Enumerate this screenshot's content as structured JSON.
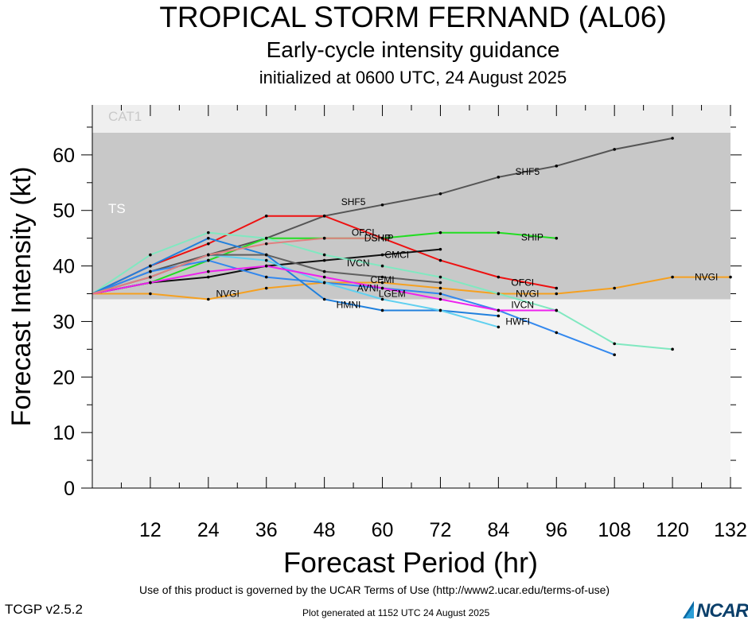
{
  "header": {
    "title": "TROPICAL STORM FERNAND (AL06)",
    "subtitle": "Early-cycle intensity guidance",
    "init": "initialized at 0600 UTC, 24 August 2025"
  },
  "footer": {
    "terms": "Use of this product is governed by the UCAR Terms of Use (http://www2.ucar.edu/terms-of-use)",
    "version": "TCGP v2.5.2",
    "generated": "Plot generated at 1152 UTC   24 August 2025",
    "logo_text": "NCAR"
  },
  "chart_data": {
    "type": "line",
    "xlabel": "Forecast Period (hr)",
    "ylabel": "Forecast Intensity (kt)",
    "xlim": [
      0,
      132
    ],
    "ylim": [
      0,
      69
    ],
    "xticks": [
      12,
      24,
      36,
      48,
      60,
      72,
      84,
      96,
      108,
      120,
      132
    ],
    "yticks": [
      0,
      10,
      20,
      30,
      40,
      50,
      60
    ],
    "bands": [
      {
        "name": "TS",
        "from": 34,
        "to": 64,
        "color": "#c8c8c8"
      },
      {
        "name": "CAT1",
        "from": 64,
        "to": 69,
        "color": "#efefef"
      }
    ],
    "series": [
      {
        "name": "SHF5",
        "color": "#555555",
        "x": [
          0,
          12,
          24,
          36,
          48,
          60,
          72,
          84,
          96,
          108,
          120
        ],
        "y": [
          35,
          39,
          42,
          45,
          49,
          51,
          53,
          56,
          58,
          61,
          63
        ]
      },
      {
        "name": "SHIP",
        "color": "#22dd22",
        "x": [
          0,
          12,
          24,
          36,
          48,
          60,
          72,
          84,
          96
        ],
        "y": [
          35,
          37,
          41,
          45,
          45,
          45,
          46,
          46,
          45
        ]
      },
      {
        "name": "OFCI",
        "color": "#ee1111",
        "x": [
          0,
          12,
          24,
          36,
          48,
          60,
          72,
          84,
          96
        ],
        "y": [
          35,
          40,
          44,
          49,
          49,
          45,
          41,
          38,
          36
        ]
      },
      {
        "name": "CMCI",
        "color": "#111111",
        "x": [
          0,
          12,
          24,
          36,
          48,
          60,
          72
        ],
        "y": [
          35,
          37,
          38,
          40,
          41,
          42,
          43
        ]
      },
      {
        "name": "NVGI",
        "color": "#f5a020",
        "x": [
          0,
          12,
          24,
          36,
          48,
          60,
          72,
          84,
          96,
          108,
          120,
          132
        ],
        "y": [
          35,
          35,
          34,
          36,
          37,
          37,
          36,
          35,
          35,
          36,
          38,
          38
        ]
      },
      {
        "name": "IVCN",
        "color": "#80e8c0",
        "x": [
          0,
          12,
          24,
          36,
          48,
          60,
          72,
          84,
          96,
          108,
          120
        ],
        "y": [
          35,
          42,
          46,
          45,
          42,
          40,
          38,
          35,
          32,
          26,
          25
        ]
      },
      {
        "name": "HWFI",
        "color": "#3388ee",
        "x": [
          0,
          12,
          24,
          36,
          48,
          60,
          72,
          84,
          96,
          108
        ],
        "y": [
          35,
          39,
          41,
          38,
          37,
          36,
          35,
          32,
          28,
          24
        ]
      },
      {
        "name": "HMNI",
        "color": "#2080dd",
        "x": [
          0,
          12,
          24,
          36,
          48,
          60,
          72,
          84
        ],
        "y": [
          35,
          40,
          45,
          42,
          34,
          32,
          32,
          31
        ]
      },
      {
        "name": "AVNI",
        "color": "#60d0f0",
        "x": [
          0,
          12,
          24,
          36,
          48,
          60,
          72,
          84
        ],
        "y": [
          35,
          38,
          42,
          41,
          37,
          34,
          32,
          29
        ]
      },
      {
        "name": "CEMI",
        "color": "#606060",
        "x": [
          0,
          12,
          24,
          36,
          48,
          60,
          72
        ],
        "y": [
          35,
          38,
          42,
          42,
          39,
          38,
          37
        ]
      },
      {
        "name": "LGEM",
        "color": "#ee22ee",
        "x": [
          0,
          12,
          24,
          36,
          48,
          60,
          72,
          84,
          96
        ],
        "y": [
          35,
          37,
          39,
          40,
          38,
          36,
          34,
          32,
          32
        ]
      },
      {
        "name": "DSHP",
        "color": "#e08080",
        "x": [
          0,
          12,
          24,
          36,
          48,
          60
        ],
        "y": [
          35,
          38,
          42,
          44,
          45,
          45
        ]
      }
    ]
  }
}
